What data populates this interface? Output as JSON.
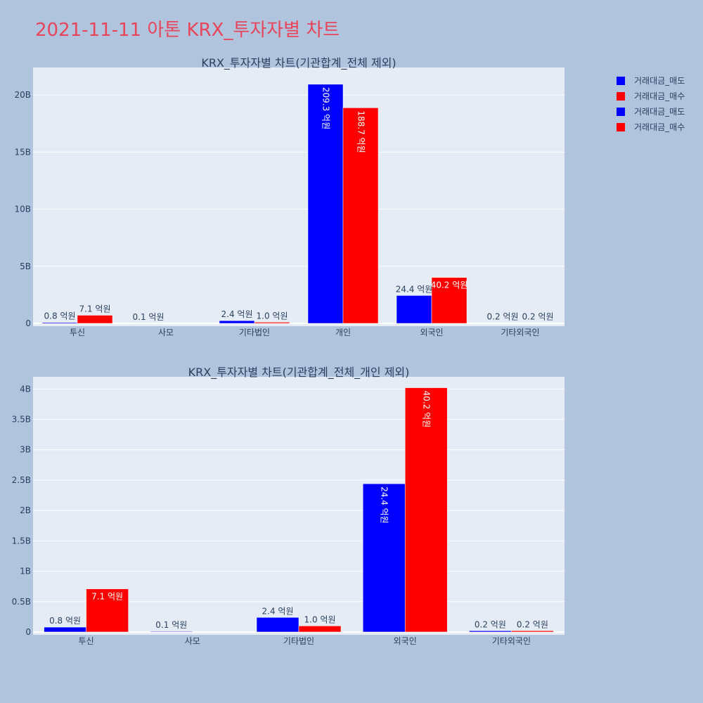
{
  "title": "2021-11-11 아톤 KRX_투자자별 차트",
  "legend": {
    "placement": "top-right",
    "entries": [
      {
        "name": "거래대금_매도",
        "color": "#0000ff"
      },
      {
        "name": "거래대금_매수",
        "color": "#ff0000"
      },
      {
        "name": "거래대금_매도",
        "color": "#0000ff"
      },
      {
        "name": "거래대금_매수",
        "color": "#ff0000"
      }
    ]
  },
  "chart_data": [
    {
      "type": "bar",
      "title": "KRX_투자자별 차트(기관합계_전체 제외)",
      "categories": [
        "투신",
        "사모",
        "기타법인",
        "개인",
        "외국인",
        "기타외국인"
      ],
      "ylim": [
        0,
        22400000000
      ],
      "yticks": [
        0,
        5000000000,
        10000000000,
        15000000000,
        20000000000
      ],
      "ytick_labels": [
        "0",
        "5B",
        "10B",
        "15B",
        "20B"
      ],
      "grid": true,
      "series": [
        {
          "name": "거래대금_매도",
          "color": "#0000ff",
          "values": [
            80000000,
            10000000,
            240000000,
            20930000000,
            2440000000,
            20000000
          ],
          "labels": [
            "0.8 억원",
            "0.1 억원",
            "2.4 억원",
            "209.3 억원",
            "24.4 억원",
            "0.2 억원"
          ]
        },
        {
          "name": "거래대금_매수",
          "color": "#ff0000",
          "values": [
            710000000,
            0,
            100000000,
            18870000000,
            4020000000,
            20000000
          ],
          "labels": [
            "7.1 억원",
            "",
            "1.0 억원",
            "188.7 억원",
            "40.2 억원",
            "0.2 억원"
          ]
        }
      ]
    },
    {
      "type": "bar",
      "title": "KRX_투자자별 차트(기관합계_전체_개인 제외)",
      "categories": [
        "투신",
        "사모",
        "기타법인",
        "외국인",
        "기타외국인"
      ],
      "ylim": [
        0,
        4200000000
      ],
      "yticks": [
        0,
        500000000,
        1000000000,
        1500000000,
        2000000000,
        2500000000,
        3000000000,
        3500000000,
        4000000000
      ],
      "ytick_labels": [
        "0",
        "0.5B",
        "1B",
        "1.5B",
        "2B",
        "2.5B",
        "3B",
        "3.5B",
        "4B"
      ],
      "grid": true,
      "series": [
        {
          "name": "거래대금_매도",
          "color": "#0000ff",
          "values": [
            80000000,
            10000000,
            240000000,
            2440000000,
            20000000
          ],
          "labels": [
            "0.8 억원",
            "0.1 억원",
            "2.4 억원",
            "24.4 억원",
            "0.2 억원"
          ]
        },
        {
          "name": "거래대금_매수",
          "color": "#ff0000",
          "values": [
            710000000,
            0,
            100000000,
            4020000000,
            20000000
          ],
          "labels": [
            "7.1 억원",
            "",
            "1.0 억원",
            "40.2 억원",
            "0.2 억원"
          ]
        }
      ]
    }
  ]
}
